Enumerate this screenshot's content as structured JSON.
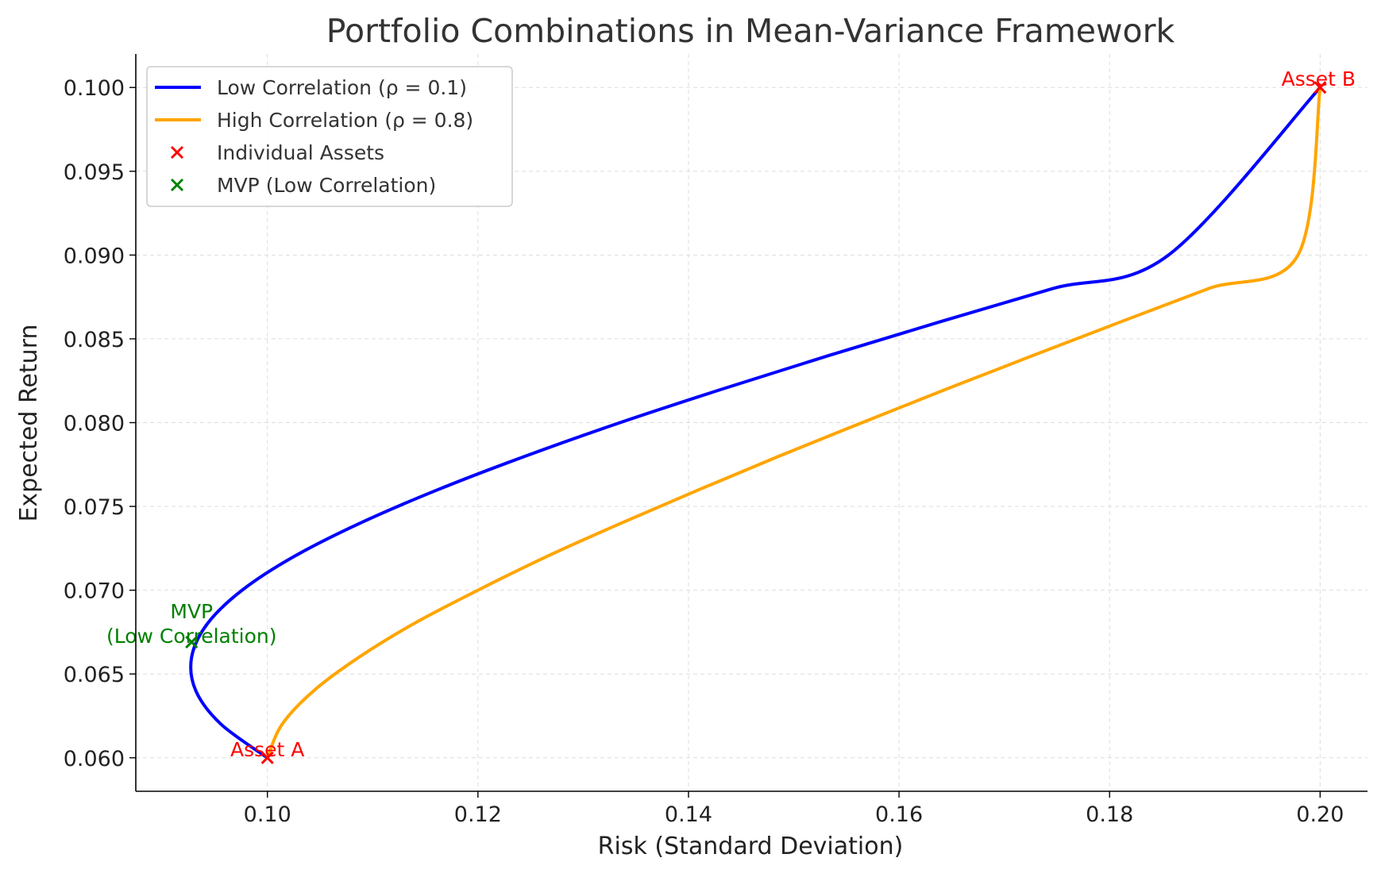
{
  "chart_data": {
    "type": "line",
    "title": "Portfolio Combinations in Mean-Variance Framework",
    "xlabel": "Risk (Standard Deviation)",
    "ylabel": "Expected Return",
    "xlim": [
      0.0875,
      0.2045
    ],
    "ylim": [
      0.058,
      0.102
    ],
    "xticks": [
      0.1,
      0.12,
      0.14,
      0.16,
      0.18,
      0.2
    ],
    "xtick_labels": [
      "0.10",
      "0.12",
      "0.14",
      "0.16",
      "0.18",
      "0.20"
    ],
    "yticks": [
      0.06,
      0.065,
      0.07,
      0.075,
      0.08,
      0.085,
      0.09,
      0.095,
      0.1
    ],
    "ytick_labels": [
      "0.060",
      "0.065",
      "0.070",
      "0.075",
      "0.080",
      "0.085",
      "0.090",
      "0.095",
      "0.100"
    ],
    "grid": true,
    "legend_position": "top-left",
    "series": [
      {
        "name": "Low Correlation (ρ = 0.1)",
        "kind": "line",
        "color": "#0000ff",
        "points": [
          [
            0.1,
            0.06
          ],
          [
            0.0956,
            0.062
          ],
          [
            0.0932,
            0.064
          ],
          [
            0.0928,
            0.066
          ],
          [
            0.0943,
            0.068
          ],
          [
            0.0976,
            0.07
          ],
          [
            0.1025,
            0.072
          ],
          [
            0.1088,
            0.074
          ],
          [
            0.1162,
            0.076
          ],
          [
            0.1245,
            0.078
          ],
          [
            0.1335,
            0.08
          ],
          [
            0.1432,
            0.082
          ],
          [
            0.1533,
            0.084
          ],
          [
            0.1638,
            0.086
          ],
          [
            0.1746,
            0.088
          ],
          [
            0.1856,
            0.09
          ],
          [
            0.2,
            0.1
          ]
        ]
      },
      {
        "name": "High Correlation (ρ = 0.8)",
        "kind": "line",
        "color": "#ffa500",
        "points": [
          [
            0.1,
            0.06
          ],
          [
            0.1014,
            0.062
          ],
          [
            0.1044,
            0.064
          ],
          [
            0.1087,
            0.066
          ],
          [
            0.1139,
            0.068
          ],
          [
            0.12,
            0.07
          ],
          [
            0.1265,
            0.072
          ],
          [
            0.1336,
            0.074
          ],
          [
            0.141,
            0.076
          ],
          [
            0.1486,
            0.078
          ],
          [
            0.1565,
            0.08
          ],
          [
            0.1645,
            0.082
          ],
          [
            0.1727,
            0.084
          ],
          [
            0.181,
            0.086
          ],
          [
            0.1894,
            0.088
          ],
          [
            0.1979,
            0.09
          ],
          [
            0.2,
            0.1
          ]
        ]
      },
      {
        "name": "Individual Assets",
        "kind": "marker",
        "marker": "x",
        "color": "#ff0000",
        "points": [
          [
            0.1,
            0.06
          ],
          [
            0.2,
            0.1
          ]
        ]
      },
      {
        "name": "MVP (Low Correlation)",
        "kind": "marker",
        "marker": "x",
        "color": "#008000",
        "points": [
          [
            0.0928,
            0.0669
          ]
        ]
      }
    ],
    "annotations": [
      {
        "text": "Asset A",
        "x": 0.1,
        "y": 0.06,
        "color": "#ff0000"
      },
      {
        "text": "Asset B",
        "x": 0.2,
        "y": 0.1,
        "color": "#ff0000"
      },
      {
        "text": "MVP\n(Low Correlation)",
        "x": 0.0928,
        "y": 0.0669,
        "color": "#008000"
      }
    ]
  }
}
